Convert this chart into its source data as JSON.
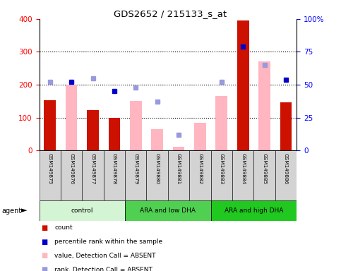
{
  "title": "GDS2652 / 215133_s_at",
  "samples": [
    "GSM149875",
    "GSM149876",
    "GSM149877",
    "GSM149878",
    "GSM149879",
    "GSM149880",
    "GSM149881",
    "GSM149882",
    "GSM149883",
    "GSM149884",
    "GSM149885",
    "GSM149886"
  ],
  "count_present": [
    152,
    null,
    122,
    100,
    null,
    null,
    null,
    null,
    null,
    395,
    null,
    147
  ],
  "count_absent_value": [
    null,
    200,
    null,
    null,
    150,
    65,
    10,
    85,
    165,
    null,
    270,
    null
  ],
  "percentile_present": [
    null,
    52,
    null,
    45,
    null,
    null,
    null,
    null,
    null,
    79,
    null,
    54
  ],
  "percentile_absent": [
    52,
    null,
    55,
    null,
    48,
    37,
    12,
    null,
    52,
    null,
    65,
    null
  ],
  "groups": [
    {
      "label": "control",
      "start": 0,
      "end": 4,
      "color": "#d4f5d4"
    },
    {
      "label": "ARA and low DHA",
      "start": 4,
      "end": 8,
      "color": "#50d050"
    },
    {
      "label": "ARA and high DHA",
      "start": 8,
      "end": 12,
      "color": "#20c820"
    }
  ],
  "bar_color_present": "#cc1100",
  "bar_color_absent": "#ffb6c1",
  "dot_color_present": "#0000cc",
  "dot_color_absent": "#9999dd",
  "ylim_left": [
    0,
    400
  ],
  "ylim_right": [
    0,
    100
  ],
  "yticks_left": [
    0,
    100,
    200,
    300,
    400
  ],
  "ytick_labels_right": [
    "0",
    "25",
    "50",
    "75",
    "100%"
  ],
  "gridlines": [
    100,
    200,
    300
  ],
  "sample_bg_color": "#d3d3d3"
}
